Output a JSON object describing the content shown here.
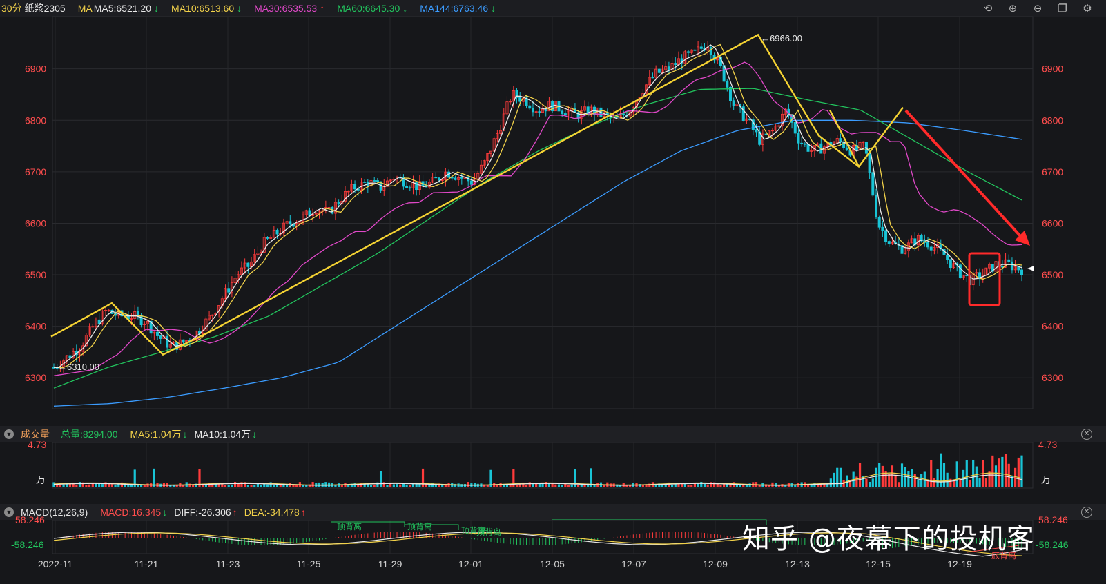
{
  "header": {
    "period": "30分",
    "symbol": "纸浆2305",
    "ma_label": "MA",
    "indicators": [
      {
        "label": "MA5:6521.20",
        "dir": "down",
        "color": "#e8e8e8"
      },
      {
        "label": "MA10:6513.60",
        "dir": "down",
        "color": "#f2d24a"
      },
      {
        "label": "MA30:6535.53",
        "dir": "up",
        "color": "#e048c8"
      },
      {
        "label": "MA60:6645.30",
        "dir": "down",
        "color": "#22c55e"
      },
      {
        "label": "MA144:6763.46",
        "dir": "down",
        "color": "#3b9cff"
      }
    ],
    "toolbar_icons": [
      "undo-icon",
      "zoom-in-icon",
      "zoom-out-icon",
      "window-icon",
      "settings-icon"
    ]
  },
  "volume_panel": {
    "title": "成交量",
    "total_label": "总量:8294.00",
    "ma5_label": "MA5:1.04万",
    "ma10_label": "MA10:1.04万",
    "top_tick": "4.73",
    "unit": "万"
  },
  "macd_panel": {
    "title": "MACD(12,26,9)",
    "macd_label": "MACD:16.345",
    "diff_label": "DIFF:-26.306",
    "dea_label": "DEA:-34.478",
    "top_tick": "58.246",
    "bottom_tick": "-58.246",
    "annotations": [
      "顶背离",
      "顶背离",
      "顶背离",
      "顶背离",
      "底背离"
    ]
  },
  "watermark": "知乎 @夜幕下的投机客",
  "chart_data": {
    "type": "candlestick",
    "y_ticks": [
      6300,
      6400,
      6500,
      6600,
      6700,
      6800,
      6900
    ],
    "ylim": [
      6240,
      6980
    ],
    "x_ticks": [
      "2022-11",
      "11-21",
      "11-23",
      "11-25",
      "11-29",
      "12-01",
      "12-05",
      "12-07",
      "12-09",
      "12-13",
      "12-15",
      "12-19"
    ],
    "high_marker": "6966.00",
    "low_marker": "6310.00",
    "close_approx": [
      6320,
      6340,
      6360,
      6400,
      6430,
      6420,
      6420,
      6410,
      6380,
      6360,
      6370,
      6390,
      6420,
      6460,
      6500,
      6520,
      6560,
      6580,
      6600,
      6610,
      6630,
      6620,
      6650,
      6670,
      6680,
      6670,
      6690,
      6680,
      6670,
      6680,
      6700,
      6690,
      6680,
      6720,
      6780,
      6850,
      6840,
      6820,
      6830,
      6820,
      6810,
      6820,
      6810,
      6800,
      6820,
      6860,
      6890,
      6900,
      6920,
      6930,
      6950,
      6900,
      6830,
      6800,
      6760,
      6780,
      6820,
      6760,
      6740,
      6750,
      6760,
      6740,
      6750,
      6600,
      6560,
      6550,
      6570,
      6560,
      6540,
      6510,
      6490,
      6500,
      6520,
      6520,
      6510
    ],
    "series": [
      {
        "name": "MA5",
        "color": "#e8e8e8"
      },
      {
        "name": "MA10",
        "color": "#f2d24a"
      },
      {
        "name": "MA30",
        "color": "#e048c8"
      },
      {
        "name": "MA60",
        "color": "#22c55e"
      },
      {
        "name": "MA144",
        "color": "#3b9cff"
      }
    ],
    "ma144_approx": [
      6245,
      6250,
      6262,
      6280,
      6300,
      6330,
      6400,
      6470,
      6540,
      6610,
      6680,
      6740,
      6780,
      6800,
      6800,
      6795,
      6780,
      6763
    ],
    "ma60_approx": [
      6280,
      6320,
      6350,
      6380,
      6420,
      6480,
      6540,
      6610,
      6680,
      6740,
      6790,
      6830,
      6860,
      6862,
      6840,
      6820,
      6760,
      6700,
      6645
    ],
    "zigzag_yellow": [
      6380,
      6445,
      6345,
      6390,
      6966,
      6770,
      6710,
      6825
    ],
    "trend_arrow": "down-right",
    "highlight_box": "red",
    "volume_max_label": "4.73"
  }
}
